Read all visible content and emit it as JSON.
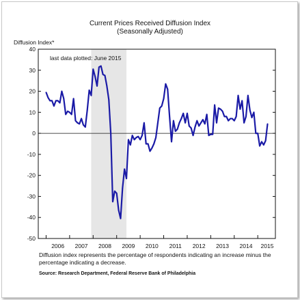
{
  "chart_data": {
    "type": "line",
    "title": "Current Prices Received Diffusion Index",
    "subtitle": "(Seasonally Adjusted)",
    "ylabel": "Diffusion Index*",
    "xlabel": "",
    "ylim": [
      -50,
      40
    ],
    "xlim": [
      "2005-09",
      "2015-10"
    ],
    "yticks": [
      "40",
      "30",
      "20",
      "10",
      "0",
      "-10",
      "-20",
      "-30",
      "-40",
      "-50"
    ],
    "xticks": [
      "2006",
      "2007",
      "2008",
      "2009",
      "2010",
      "2011",
      "2012",
      "2013",
      "2014",
      "2015"
    ],
    "annotation": "last data plotted: June 2015",
    "recession_shading": [
      "2007-12",
      "2009-06"
    ],
    "zero_line": true,
    "grid": false,
    "line_color": "#1a1aa6",
    "shade_color": "#e6e6e6",
    "series": [
      {
        "x": [
          "2006-01",
          "2006-02",
          "2006-03",
          "2006-04",
          "2006-05",
          "2006-06",
          "2006-07",
          "2006-08",
          "2006-09",
          "2006-10",
          "2006-11",
          "2006-12",
          "2007-01",
          "2007-02",
          "2007-03",
          "2007-04",
          "2007-05",
          "2007-06",
          "2007-07",
          "2007-08",
          "2007-09",
          "2007-10",
          "2007-11",
          "2007-12",
          "2008-01",
          "2008-02",
          "2008-03",
          "2008-04",
          "2008-05",
          "2008-06",
          "2008-07",
          "2008-08",
          "2008-09",
          "2008-10",
          "2008-11",
          "2008-12",
          "2009-01",
          "2009-02",
          "2009-03",
          "2009-04",
          "2009-05",
          "2009-06",
          "2009-07",
          "2009-08",
          "2009-09",
          "2009-10",
          "2009-11",
          "2009-12",
          "2010-01",
          "2010-02",
          "2010-03",
          "2010-04",
          "2010-05",
          "2010-06",
          "2010-07",
          "2010-08",
          "2010-09",
          "2010-10",
          "2010-11",
          "2010-12",
          "2011-01",
          "2011-02",
          "2011-03",
          "2011-04",
          "2011-05",
          "2011-06",
          "2011-07",
          "2011-08",
          "2011-09",
          "2011-10",
          "2011-11",
          "2011-12",
          "2012-01",
          "2012-02",
          "2012-03",
          "2012-04",
          "2012-05",
          "2012-06",
          "2012-07",
          "2012-08",
          "2012-09",
          "2012-10",
          "2012-11",
          "2012-12",
          "2013-01",
          "2013-02",
          "2013-03",
          "2013-04",
          "2013-05",
          "2013-06",
          "2013-07",
          "2013-08",
          "2013-09",
          "2013-10",
          "2013-11",
          "2013-12",
          "2014-01",
          "2014-02",
          "2014-03",
          "2014-04",
          "2014-05",
          "2014-06",
          "2014-07",
          "2014-08",
          "2014-09",
          "2014-10",
          "2014-11",
          "2014-12",
          "2015-01",
          "2015-02",
          "2015-03",
          "2015-04",
          "2015-05",
          "2015-06"
        ],
        "values": [
          19.5,
          17,
          15.5,
          15.5,
          13,
          15.5,
          15.5,
          14.5,
          20,
          16.5,
          9,
          10.5,
          10,
          9,
          16.5,
          6,
          5,
          4.5,
          7,
          4,
          3,
          11,
          20.5,
          18,
          30.5,
          27,
          22.5,
          31.5,
          32,
          28,
          27.5,
          22.5,
          16,
          0,
          -32.5,
          -27.5,
          -28.5,
          -36.5,
          -40.5,
          -26,
          -17,
          -21.5,
          -3,
          -5.5,
          -1,
          -3,
          -2,
          -1.5,
          -3,
          -1,
          5,
          -5,
          -5,
          -8.5,
          -7,
          -5,
          -2,
          5,
          12,
          13,
          16.5,
          23.5,
          21,
          8,
          -4,
          6,
          1,
          2,
          5,
          7,
          9.5,
          5,
          9.5,
          3.5,
          2.5,
          -1,
          3,
          6,
          3.5,
          5,
          6.5,
          4.5,
          9,
          -1,
          -0.5,
          -0.5,
          13.5,
          5,
          12,
          11.5,
          10.5,
          8,
          8,
          6,
          7,
          7,
          6,
          8,
          18,
          11.5,
          15.5,
          5,
          8,
          18,
          11,
          7.5,
          10,
          0,
          0,
          -6,
          -4,
          -5.5,
          -3.5,
          4.5
        ]
      }
    ]
  }
}
